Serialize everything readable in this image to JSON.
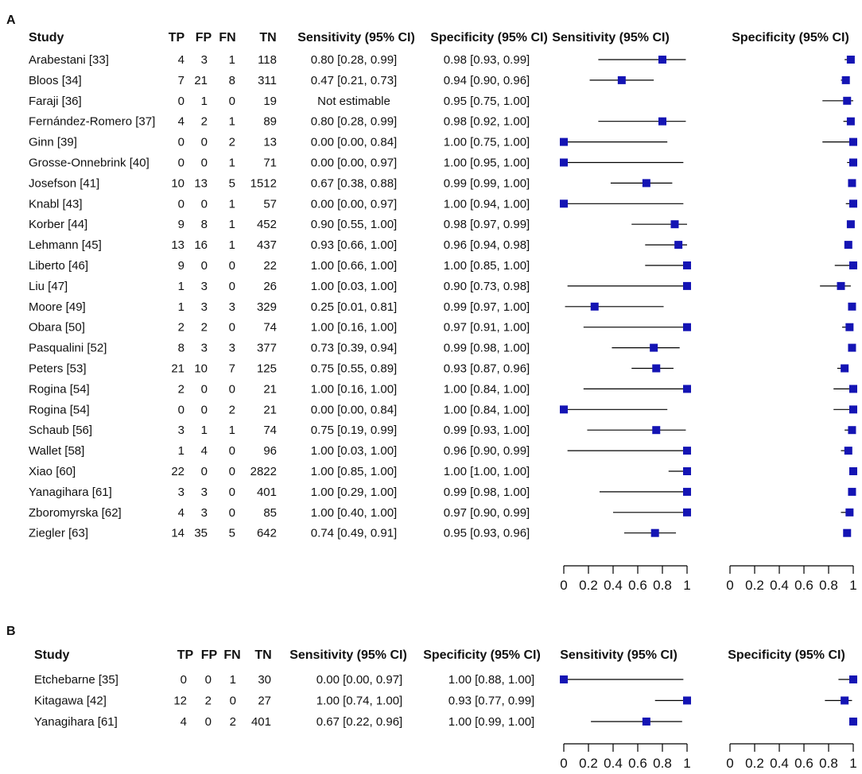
{
  "figure": {
    "colors": {
      "marker": "#1414b4",
      "line": "#000000",
      "text": "#111111"
    }
  },
  "chart_data": [
    {
      "type": "forest",
      "panel_label": "A",
      "columns": [
        "Study",
        "TP",
        "FP",
        "FN",
        "TN",
        "Sensitivity (95% CI)",
        "Specificity (95% CI)"
      ],
      "plot_headers": [
        "Sensitivity (95% CI)",
        "Specificity (95% CI)"
      ],
      "xlim": [
        0,
        1
      ],
      "ticks": [
        "0",
        "0.2",
        "0.4",
        "0.6",
        "0.8",
        "1"
      ],
      "studies": [
        {
          "name": "Arabestani [33]",
          "tp": "4",
          "fp": "3",
          "fn": "1",
          "tn": "118",
          "sens_text": "0.80 [0.28, 0.99]",
          "spec_text": "0.98 [0.93, 0.99]",
          "sens": [
            0.8,
            0.28,
            0.99
          ],
          "spec": [
            0.98,
            0.93,
            0.99
          ]
        },
        {
          "name": "Bloos [34]",
          "tp": "7",
          "fp": "21",
          "fn": "8",
          "tn": "311",
          "sens_text": "0.47 [0.21, 0.73]",
          "spec_text": "0.94 [0.90, 0.96]",
          "sens": [
            0.47,
            0.21,
            0.73
          ],
          "spec": [
            0.94,
            0.9,
            0.96
          ]
        },
        {
          "name": "Faraji [36]",
          "tp": "0",
          "fp": "1",
          "fn": "0",
          "tn": "19",
          "sens_text": "Not estimable",
          "spec_text": "0.95 [0.75, 1.00]",
          "sens": null,
          "spec": [
            0.95,
            0.75,
            1.0
          ]
        },
        {
          "name": "Fernández-Romero [37]",
          "tp": "4",
          "fp": "2",
          "fn": "1",
          "tn": "89",
          "sens_text": "0.80 [0.28, 0.99]",
          "spec_text": "0.98 [0.92, 1.00]",
          "sens": [
            0.8,
            0.28,
            0.99
          ],
          "spec": [
            0.98,
            0.92,
            1.0
          ]
        },
        {
          "name": "Ginn [39]",
          "tp": "0",
          "fp": "0",
          "fn": "2",
          "tn": "13",
          "sens_text": "0.00 [0.00, 0.84]",
          "spec_text": "1.00 [0.75, 1.00]",
          "sens": [
            0.0,
            0.0,
            0.84
          ],
          "spec": [
            1.0,
            0.75,
            1.0
          ]
        },
        {
          "name": "Grosse-Onnebrink [40]",
          "tp": "0",
          "fp": "0",
          "fn": "1",
          "tn": "71",
          "sens_text": "0.00 [0.00, 0.97]",
          "spec_text": "1.00 [0.95, 1.00]",
          "sens": [
            0.0,
            0.0,
            0.97
          ],
          "spec": [
            1.0,
            0.95,
            1.0
          ]
        },
        {
          "name": "Josefson [41]",
          "tp": "10",
          "fp": "13",
          "fn": "5",
          "tn": "1512",
          "sens_text": "0.67 [0.38, 0.88]",
          "spec_text": "0.99 [0.99, 1.00]",
          "sens": [
            0.67,
            0.38,
            0.88
          ],
          "spec": [
            0.99,
            0.99,
            1.0
          ]
        },
        {
          "name": "Knabl [43]",
          "tp": "0",
          "fp": "0",
          "fn": "1",
          "tn": "57",
          "sens_text": "0.00 [0.00, 0.97]",
          "spec_text": "1.00 [0.94, 1.00]",
          "sens": [
            0.0,
            0.0,
            0.97
          ],
          "spec": [
            1.0,
            0.94,
            1.0
          ]
        },
        {
          "name": "Korber [44]",
          "tp": "9",
          "fp": "8",
          "fn": "1",
          "tn": "452",
          "sens_text": "0.90 [0.55, 1.00]",
          "spec_text": "0.98 [0.97, 0.99]",
          "sens": [
            0.9,
            0.55,
            1.0
          ],
          "spec": [
            0.98,
            0.97,
            0.99
          ]
        },
        {
          "name": "Lehmann [45]",
          "tp": "13",
          "fp": "16",
          "fn": "1",
          "tn": "437",
          "sens_text": "0.93 [0.66, 1.00]",
          "spec_text": "0.96 [0.94, 0.98]",
          "sens": [
            0.93,
            0.66,
            1.0
          ],
          "spec": [
            0.96,
            0.94,
            0.98
          ]
        },
        {
          "name": "Liberto [46]",
          "tp": "9",
          "fp": "0",
          "fn": "0",
          "tn": "22",
          "sens_text": "1.00 [0.66, 1.00]",
          "spec_text": "1.00 [0.85, 1.00]",
          "sens": [
            1.0,
            0.66,
            1.0
          ],
          "spec": [
            1.0,
            0.85,
            1.0
          ]
        },
        {
          "name": "Liu [47]",
          "tp": "1",
          "fp": "3",
          "fn": "0",
          "tn": "26",
          "sens_text": "1.00 [0.03, 1.00]",
          "spec_text": "0.90 [0.73, 0.98]",
          "sens": [
            1.0,
            0.03,
            1.0
          ],
          "spec": [
            0.9,
            0.73,
            0.98
          ]
        },
        {
          "name": "Moore [49]",
          "tp": "1",
          "fp": "3",
          "fn": "3",
          "tn": "329",
          "sens_text": "0.25 [0.01, 0.81]",
          "spec_text": "0.99 [0.97, 1.00]",
          "sens": [
            0.25,
            0.01,
            0.81
          ],
          "spec": [
            0.99,
            0.97,
            1.0
          ]
        },
        {
          "name": "Obara [50]",
          "tp": "2",
          "fp": "2",
          "fn": "0",
          "tn": "74",
          "sens_text": "1.00 [0.16, 1.00]",
          "spec_text": "0.97 [0.91, 1.00]",
          "sens": [
            1.0,
            0.16,
            1.0
          ],
          "spec": [
            0.97,
            0.91,
            1.0
          ]
        },
        {
          "name": "Pasqualini [52]",
          "tp": "8",
          "fp": "3",
          "fn": "3",
          "tn": "377",
          "sens_text": "0.73 [0.39, 0.94]",
          "spec_text": "0.99 [0.98, 1.00]",
          "sens": [
            0.73,
            0.39,
            0.94
          ],
          "spec": [
            0.99,
            0.98,
            1.0
          ]
        },
        {
          "name": "Peters [53]",
          "tp": "21",
          "fp": "10",
          "fn": "7",
          "tn": "125",
          "sens_text": "0.75 [0.55, 0.89]",
          "spec_text": "0.93 [0.87, 0.96]",
          "sens": [
            0.75,
            0.55,
            0.89
          ],
          "spec": [
            0.93,
            0.87,
            0.96
          ]
        },
        {
          "name": "Rogina [54]",
          "tp": "2",
          "fp": "0",
          "fn": "0",
          "tn": "21",
          "sens_text": "1.00 [0.16, 1.00]",
          "spec_text": "1.00 [0.84, 1.00]",
          "sens": [
            1.0,
            0.16,
            1.0
          ],
          "spec": [
            1.0,
            0.84,
            1.0
          ]
        },
        {
          "name": "Rogina [54]",
          "tp": "0",
          "fp": "0",
          "fn": "2",
          "tn": "21",
          "sens_text": "0.00 [0.00, 0.84]",
          "spec_text": "1.00 [0.84, 1.00]",
          "sens": [
            0.0,
            0.0,
            0.84
          ],
          "spec": [
            1.0,
            0.84,
            1.0
          ]
        },
        {
          "name": "Schaub [56]",
          "tp": "3",
          "fp": "1",
          "fn": "1",
          "tn": "74",
          "sens_text": "0.75 [0.19, 0.99]",
          "spec_text": "0.99 [0.93, 1.00]",
          "sens": [
            0.75,
            0.19,
            0.99
          ],
          "spec": [
            0.99,
            0.93,
            1.0
          ]
        },
        {
          "name": "Wallet [58]",
          "tp": "1",
          "fp": "4",
          "fn": "0",
          "tn": "96",
          "sens_text": "1.00 [0.03, 1.00]",
          "spec_text": "0.96 [0.90, 0.99]",
          "sens": [
            1.0,
            0.03,
            1.0
          ],
          "spec": [
            0.96,
            0.9,
            0.99
          ]
        },
        {
          "name": "Xiao [60]",
          "tp": "22",
          "fp": "0",
          "fn": "0",
          "tn": "2822",
          "sens_text": "1.00 [0.85, 1.00]",
          "spec_text": "1.00 [1.00, 1.00]",
          "sens": [
            1.0,
            0.85,
            1.0
          ],
          "spec": [
            1.0,
            1.0,
            1.0
          ]
        },
        {
          "name": "Yanagihara [61]",
          "tp": "3",
          "fp": "3",
          "fn": "0",
          "tn": "401",
          "sens_text": "1.00 [0.29, 1.00]",
          "spec_text": "0.99 [0.98, 1.00]",
          "sens": [
            1.0,
            0.29,
            1.0
          ],
          "spec": [
            0.99,
            0.98,
            1.0
          ]
        },
        {
          "name": "Zboromyrska [62]",
          "tp": "4",
          "fp": "3",
          "fn": "0",
          "tn": "85",
          "sens_text": "1.00 [0.40, 1.00]",
          "spec_text": "0.97 [0.90, 0.99]",
          "sens": [
            1.0,
            0.4,
            1.0
          ],
          "spec": [
            0.97,
            0.9,
            0.99
          ]
        },
        {
          "name": "Ziegler [63]",
          "tp": "14",
          "fp": "35",
          "fn": "5",
          "tn": "642",
          "sens_text": "0.74 [0.49, 0.91]",
          "spec_text": "0.95 [0.93, 0.96]",
          "sens": [
            0.74,
            0.49,
            0.91
          ],
          "spec": [
            0.95,
            0.93,
            0.96
          ]
        }
      ]
    },
    {
      "type": "forest",
      "panel_label": "B",
      "columns": [
        "Study",
        "TP",
        "FP",
        "FN",
        "TN",
        "Sensitivity (95% CI)",
        "Specificity (95% CI)"
      ],
      "plot_headers": [
        "Sensitivity (95% CI)",
        "Specificity (95% CI)"
      ],
      "xlim": [
        0,
        1
      ],
      "ticks": [
        "0",
        "0.2",
        "0.4",
        "0.6",
        "0.8",
        "1"
      ],
      "studies": [
        {
          "name": "Etchebarne [35]",
          "tp": "0",
          "fp": "0",
          "fn": "1",
          "tn": "30",
          "sens_text": "0.00 [0.00, 0.97]",
          "spec_text": "1.00 [0.88, 1.00]",
          "sens": [
            0.0,
            0.0,
            0.97
          ],
          "spec": [
            1.0,
            0.88,
            1.0
          ]
        },
        {
          "name": "Kitagawa [42]",
          "tp": "12",
          "fp": "2",
          "fn": "0",
          "tn": "27",
          "sens_text": "1.00 [0.74, 1.00]",
          "spec_text": "0.93 [0.77, 0.99]",
          "sens": [
            1.0,
            0.74,
            1.0
          ],
          "spec": [
            0.93,
            0.77,
            0.99
          ]
        },
        {
          "name": "Yanagihara [61]",
          "tp": "4",
          "fp": "0",
          "fn": "2",
          "tn": "401",
          "sens_text": "0.67 [0.22, 0.96]",
          "spec_text": "1.00 [0.99, 1.00]",
          "sens": [
            0.67,
            0.22,
            0.96
          ],
          "spec": [
            1.0,
            0.99,
            1.0
          ]
        }
      ]
    }
  ]
}
